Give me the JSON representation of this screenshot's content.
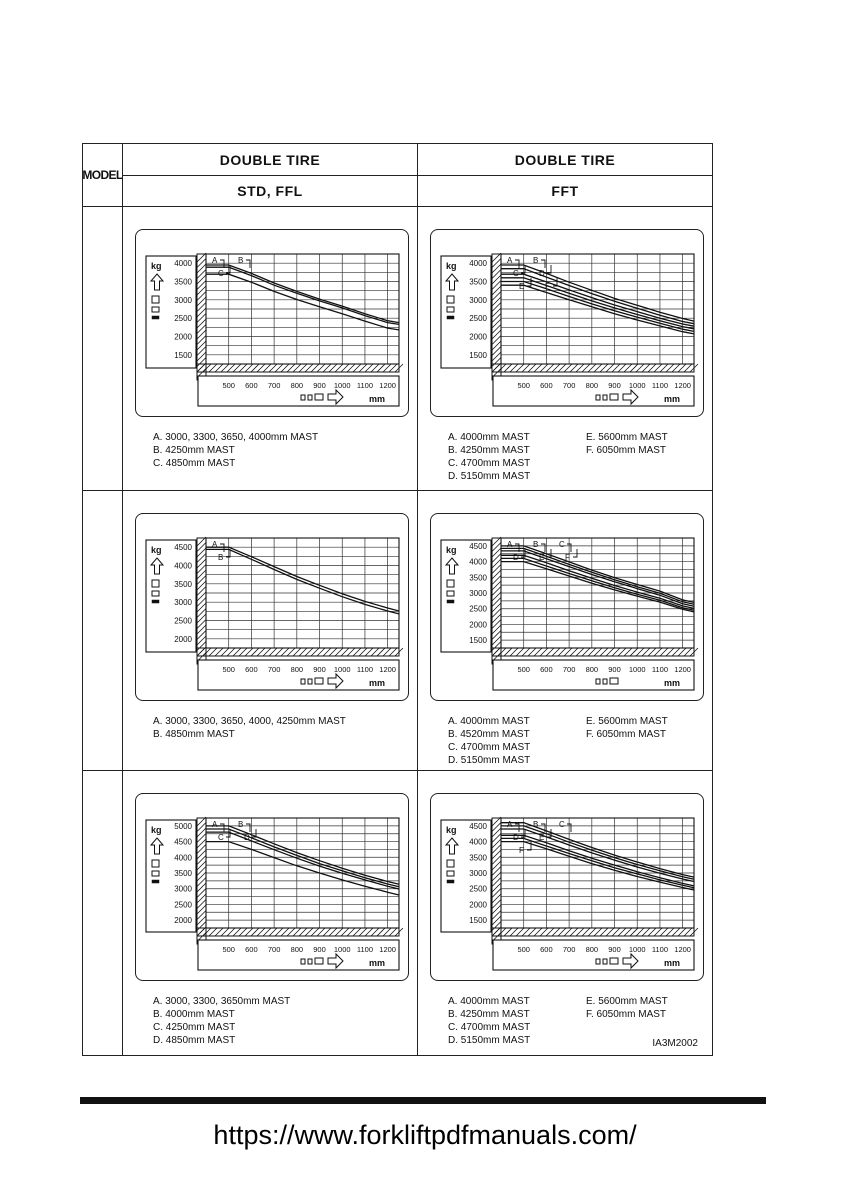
{
  "page": {
    "footer_url": "https://www.forkliftpdfmanuals.com/"
  },
  "table": {
    "model_header": "MODEL",
    "columns": [
      {
        "tire": "DOUBLE TIRE",
        "variant": "STD, FFL"
      },
      {
        "tire": "DOUBLE TIRE",
        "variant": "FFT"
      }
    ]
  },
  "chart_data": [
    {
      "type": "line",
      "position": "row-1 std-ffl",
      "ylabel": "kg",
      "xlabel": "mm",
      "ylim": [
        1250,
        4250
      ],
      "xlim": [
        400,
        1250
      ],
      "grid_step": 250,
      "yticks": [
        4000,
        3500,
        3000,
        2500,
        2000,
        1500
      ],
      "xticks": [
        500,
        600,
        700,
        800,
        900,
        1000,
        1100,
        1200
      ],
      "x": [
        400,
        500,
        600,
        700,
        800,
        900,
        1000,
        1100,
        1200,
        1250
      ],
      "series": [
        {
          "name": "A",
          "values": [
            3950,
            3950,
            3720,
            3460,
            3230,
            3020,
            2830,
            2620,
            2430,
            2380
          ]
        },
        {
          "name": "B",
          "values": [
            3890,
            3890,
            3660,
            3400,
            3180,
            2970,
            2780,
            2570,
            2380,
            2330
          ]
        },
        {
          "name": "C",
          "values": [
            3700,
            3700,
            3480,
            3230,
            3010,
            2810,
            2620,
            2420,
            2230,
            2180
          ]
        }
      ],
      "callout_rows": [
        [
          "A",
          "B"
        ],
        [
          "C"
        ]
      ],
      "x_arrow": true,
      "legend_col1": [
        "A. 3000, 3300, 3650, 4000mm MAST",
        "B. 4250mm MAST",
        "C. 4850mm MAST"
      ],
      "legend_col2": []
    },
    {
      "type": "line",
      "position": "row-1 fft",
      "ylabel": "kg",
      "xlabel": "mm",
      "ylim": [
        1250,
        4250
      ],
      "xlim": [
        400,
        1250
      ],
      "grid_step": 250,
      "yticks": [
        4000,
        3500,
        3000,
        2500,
        2000,
        1500
      ],
      "xticks": [
        500,
        600,
        700,
        800,
        900,
        1000,
        1100,
        1200
      ],
      "x": [
        400,
        500,
        600,
        700,
        800,
        900,
        1000,
        1100,
        1200,
        1250
      ],
      "series": [
        {
          "name": "A",
          "values": [
            3950,
            3950,
            3720,
            3480,
            3260,
            3040,
            2850,
            2660,
            2490,
            2420
          ]
        },
        {
          "name": "B",
          "values": [
            3850,
            3850,
            3620,
            3390,
            3170,
            2960,
            2770,
            2580,
            2410,
            2350
          ]
        },
        {
          "name": "C",
          "values": [
            3700,
            3700,
            3490,
            3270,
            3060,
            2860,
            2680,
            2500,
            2340,
            2280
          ]
        },
        {
          "name": "D",
          "values": [
            3600,
            3600,
            3390,
            3180,
            2970,
            2780,
            2600,
            2430,
            2270,
            2210
          ]
        },
        {
          "name": "E",
          "values": [
            3500,
            3500,
            3300,
            3090,
            2890,
            2700,
            2530,
            2360,
            2200,
            2140
          ]
        },
        {
          "name": "F",
          "values": [
            3400,
            3400,
            3200,
            3000,
            2810,
            2620,
            2450,
            2290,
            2130,
            2070
          ]
        }
      ],
      "callout_rows": [
        [
          "A",
          "B"
        ],
        [
          "C",
          "D"
        ],
        [
          "E",
          "F"
        ]
      ],
      "x_arrow": true,
      "legend_col1": [
        "A. 4000mm MAST",
        "B. 4250mm MAST",
        "C. 4700mm MAST",
        "D. 5150mm MAST"
      ],
      "legend_col2": [
        "E. 5600mm MAST",
        "F. 6050mm MAST"
      ]
    },
    {
      "type": "line",
      "position": "row-2 std-ffl",
      "ylabel": "kg",
      "xlabel": "mm",
      "ylim": [
        1750,
        4750
      ],
      "xlim": [
        400,
        1250
      ],
      "grid_step": 250,
      "yticks": [
        4500,
        4000,
        3500,
        3000,
        2500,
        2000
      ],
      "xticks": [
        500,
        600,
        700,
        800,
        900,
        1000,
        1100,
        1200
      ],
      "x": [
        400,
        500,
        600,
        700,
        800,
        900,
        1000,
        1100,
        1200,
        1250
      ],
      "series": [
        {
          "name": "A",
          "values": [
            4500,
            4500,
            4240,
            3970,
            3700,
            3460,
            3230,
            3020,
            2840,
            2760
          ]
        },
        {
          "name": "B",
          "values": [
            4440,
            4440,
            4170,
            3890,
            3620,
            3380,
            3150,
            2940,
            2760,
            2680
          ]
        }
      ],
      "callout_rows": [
        [
          "A"
        ],
        [
          "B"
        ]
      ],
      "x_arrow": true,
      "legend_col1": [
        "A. 3000, 3300, 3650, 4000, 4250mm MAST",
        "B. 4850mm MAST"
      ],
      "legend_col2": []
    },
    {
      "type": "line",
      "position": "row-2 fft",
      "ylabel": "kg",
      "xlabel": "mm",
      "ylim": [
        1250,
        4750
      ],
      "xlim": [
        400,
        1250
      ],
      "grid_step": 250,
      "yticks": [
        4500,
        4000,
        3500,
        3000,
        2500,
        2000,
        1500
      ],
      "xticks": [
        500,
        600,
        700,
        800,
        900,
        1000,
        1100,
        1200
      ],
      "x": [
        400,
        500,
        600,
        700,
        800,
        900,
        1000,
        1100,
        1200,
        1250
      ],
      "series": [
        {
          "name": "A",
          "values": [
            4500,
            4500,
            4250,
            3990,
            3730,
            3490,
            3270,
            3060,
            2780,
            2700
          ]
        },
        {
          "name": "B",
          "values": [
            4420,
            4420,
            4170,
            3910,
            3660,
            3420,
            3200,
            2990,
            2720,
            2640
          ]
        },
        {
          "name": "C",
          "values": [
            4340,
            4340,
            4090,
            3840,
            3590,
            3360,
            3140,
            2930,
            2660,
            2580
          ]
        },
        {
          "name": "D",
          "values": [
            4200,
            4200,
            3960,
            3710,
            3470,
            3240,
            3030,
            2830,
            2590,
            2510
          ]
        },
        {
          "name": "E",
          "values": [
            4100,
            4100,
            3860,
            3620,
            3390,
            3170,
            2960,
            2770,
            2530,
            2450
          ]
        },
        {
          "name": "F",
          "values": [
            4000,
            4000,
            3770,
            3540,
            3310,
            3100,
            2900,
            2710,
            2480,
            2400
          ]
        }
      ],
      "callout_rows": [
        [
          "A",
          "B",
          "C"
        ],
        [
          "D",
          "E",
          "F"
        ]
      ],
      "x_arrow": false,
      "legend_col1": [
        "A. 4000mm MAST",
        "B. 4520mm MAST",
        "C. 4700mm MAST",
        "D. 5150mm MAST"
      ],
      "legend_col2": [
        "E. 5600mm MAST",
        "F. 6050mm MAST"
      ]
    },
    {
      "type": "line",
      "position": "row-3 std-ffl",
      "ylabel": "kg",
      "xlabel": "mm",
      "ylim": [
        1750,
        5250
      ],
      "xlim": [
        400,
        1250
      ],
      "grid_step": 250,
      "yticks": [
        5000,
        4500,
        4000,
        3500,
        3000,
        2500,
        2000
      ],
      "xticks": [
        500,
        600,
        700,
        800,
        900,
        1000,
        1100,
        1200
      ],
      "x": [
        400,
        500,
        600,
        700,
        800,
        900,
        1000,
        1100,
        1200,
        1250
      ],
      "series": [
        {
          "name": "A",
          "values": [
            5000,
            5000,
            4720,
            4430,
            4150,
            3890,
            3650,
            3430,
            3230,
            3140
          ]
        },
        {
          "name": "B",
          "values": [
            4900,
            4900,
            4620,
            4330,
            4060,
            3800,
            3570,
            3350,
            3150,
            3060
          ]
        },
        {
          "name": "C",
          "values": [
            4800,
            4800,
            4520,
            4240,
            3970,
            3720,
            3490,
            3280,
            3080,
            2990
          ]
        },
        {
          "name": "D",
          "values": [
            4500,
            4500,
            4250,
            3990,
            3730,
            3500,
            3280,
            3080,
            2890,
            2800
          ]
        }
      ],
      "callout_rows": [
        [
          "A",
          "B"
        ],
        [
          "C",
          "D"
        ]
      ],
      "x_arrow": true,
      "legend_col1": [
        "A. 3000, 3300, 3650mm MAST",
        "B. 4000mm MAST",
        "C. 4250mm MAST",
        "D. 4850mm MAST"
      ],
      "legend_col2": []
    },
    {
      "type": "line",
      "position": "row-3 fft",
      "ylabel": "kg",
      "xlabel": "mm",
      "ylim": [
        1250,
        4750
      ],
      "xlim": [
        400,
        1250
      ],
      "grid_step": 250,
      "yticks": [
        4500,
        4000,
        3500,
        3000,
        2500,
        2000,
        1500
      ],
      "xticks": [
        500,
        600,
        700,
        800,
        900,
        1000,
        1100,
        1200
      ],
      "x": [
        400,
        500,
        600,
        700,
        800,
        900,
        1000,
        1100,
        1200,
        1250
      ],
      "series": [
        {
          "name": "A",
          "values": [
            4600,
            4600,
            4340,
            4070,
            3810,
            3570,
            3350,
            3140,
            2950,
            2870
          ]
        },
        {
          "name": "B",
          "values": [
            4500,
            4500,
            4250,
            3980,
            3730,
            3490,
            3270,
            3070,
            2880,
            2800
          ]
        },
        {
          "name": "C",
          "values": [
            4400,
            4400,
            4150,
            3890,
            3640,
            3410,
            3190,
            2990,
            2810,
            2730
          ]
        },
        {
          "name": "D",
          "values": [
            4200,
            4200,
            3960,
            3710,
            3470,
            3250,
            3040,
            2850,
            2670,
            2590
          ]
        },
        {
          "name": "E",
          "values": [
            4100,
            4100,
            3860,
            3620,
            3390,
            3170,
            2970,
            2780,
            2610,
            2530
          ]
        },
        {
          "name": "F",
          "values": [
            4000,
            4000,
            3770,
            3530,
            3300,
            3090,
            2890,
            2710,
            2540,
            2460
          ]
        }
      ],
      "callout_rows": [
        [
          "A",
          "B",
          "C"
        ],
        [
          "D",
          "E"
        ],
        [
          "F"
        ]
      ],
      "x_arrow": true,
      "legend_col1": [
        "A. 4000mm MAST",
        "B. 4250mm MAST",
        "C. 4700mm MAST",
        "D. 5150mm MAST"
      ],
      "legend_col2": [
        "E. 5600mm MAST",
        "F. 6050mm MAST"
      ],
      "note": "IA3M2002"
    }
  ]
}
